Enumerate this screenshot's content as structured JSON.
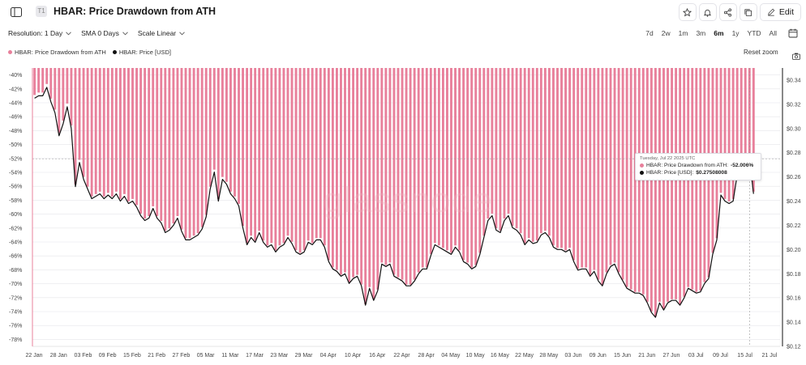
{
  "header": {
    "title": "HBAR: Price Drawdown from ATH",
    "tier_badge": "T1",
    "edit_label": "Edit"
  },
  "controls": {
    "resolution": "Resolution: 1 Day",
    "sma": "SMA 0 Days",
    "scale": "Scale Linear"
  },
  "ranges": [
    {
      "label": "7d",
      "active": false
    },
    {
      "label": "2w",
      "active": false
    },
    {
      "label": "1m",
      "active": false
    },
    {
      "label": "3m",
      "active": false
    },
    {
      "label": "6m",
      "active": true
    },
    {
      "label": "1y",
      "active": false
    },
    {
      "label": "YTD",
      "active": false
    },
    {
      "label": "All",
      "active": false
    }
  ],
  "reset_zoom": "Reset zoom",
  "watermark": "glassnode",
  "colors": {
    "drawdown": "#e8809b",
    "price": "#111111",
    "grid": "#e6e6ea"
  },
  "tooltip": {
    "date": "Tuesday, Jul 22 2025 UTC",
    "drawdown_label": "HBAR: Price Drawdown from ATH:",
    "drawdown_value": "-52.006%",
    "price_label": "HBAR: Price [USD]:",
    "price_value": "$0.27508008"
  },
  "chart_data": {
    "type": "bar+line",
    "series": [
      {
        "name": "HBAR: Price Drawdown from ATH",
        "type": "bar",
        "axis": "left"
      },
      {
        "name": "HBAR: Price [USD]",
        "type": "line",
        "axis": "right"
      }
    ],
    "x_start": "2025-01-22",
    "x_end": "2025-07-24",
    "x_ticks": [
      "22 Jan",
      "28 Jan",
      "03 Feb",
      "09 Feb",
      "15 Feb",
      "21 Feb",
      "27 Feb",
      "05 Mar",
      "11 Mar",
      "17 Mar",
      "23 Mar",
      "29 Mar",
      "04 Apr",
      "10 Apr",
      "16 Apr",
      "22 Apr",
      "28 Apr",
      "04 May",
      "10 May",
      "16 May",
      "22 May",
      "28 May",
      "03 Jun",
      "09 Jun",
      "15 Jun",
      "21 Jun",
      "27 Jun",
      "03 Jul",
      "09 Jul",
      "15 Jul",
      "21 Jul"
    ],
    "y_left": {
      "min": -79,
      "max": -39,
      "ticks": [
        -40,
        -42,
        -44,
        -46,
        -48,
        -50,
        -52,
        -54,
        -56,
        -58,
        -60,
        -62,
        -64,
        -66,
        -68,
        -70,
        -72,
        -74,
        -76,
        -78
      ],
      "unit": "%"
    },
    "y_right": {
      "min": 0.12,
      "max": 0.35,
      "ticks": [
        0.12,
        0.14,
        0.16,
        0.18,
        0.2,
        0.22,
        0.24,
        0.26,
        0.28,
        0.3,
        0.32,
        0.34
      ],
      "unit": "$"
    },
    "price_usd": [
      0.325,
      0.327,
      0.327,
      0.334,
      0.322,
      0.313,
      0.294,
      0.304,
      0.318,
      0.3,
      0.252,
      0.272,
      0.258,
      0.25,
      0.242,
      0.244,
      0.246,
      0.242,
      0.245,
      0.242,
      0.246,
      0.24,
      0.244,
      0.238,
      0.24,
      0.235,
      0.228,
      0.224,
      0.226,
      0.234,
      0.226,
      0.222,
      0.214,
      0.216,
      0.22,
      0.226,
      0.215,
      0.208,
      0.208,
      0.21,
      0.212,
      0.217,
      0.227,
      0.25,
      0.264,
      0.24,
      0.258,
      0.254,
      0.246,
      0.242,
      0.236,
      0.218,
      0.204,
      0.21,
      0.206,
      0.214,
      0.206,
      0.202,
      0.204,
      0.198,
      0.202,
      0.204,
      0.21,
      0.205,
      0.198,
      0.196,
      0.198,
      0.206,
      0.204,
      0.208,
      0.208,
      0.202,
      0.19,
      0.184,
      0.182,
      0.178,
      0.18,
      0.172,
      0.176,
      0.178,
      0.17,
      0.154,
      0.168,
      0.158,
      0.166,
      0.188,
      0.186,
      0.188,
      0.178,
      0.176,
      0.174,
      0.17,
      0.17,
      0.174,
      0.18,
      0.184,
      0.184,
      0.195,
      0.204,
      0.202,
      0.2,
      0.198,
      0.196,
      0.202,
      0.198,
      0.19,
      0.188,
      0.184,
      0.186,
      0.196,
      0.21,
      0.224,
      0.228,
      0.216,
      0.214,
      0.224,
      0.228,
      0.218,
      0.216,
      0.212,
      0.204,
      0.208,
      0.205,
      0.206,
      0.212,
      0.214,
      0.21,
      0.202,
      0.2,
      0.2,
      0.198,
      0.2,
      0.19,
      0.183,
      0.184,
      0.184,
      0.178,
      0.182,
      0.174,
      0.17,
      0.18,
      0.186,
      0.188,
      0.18,
      0.174,
      0.168,
      0.166,
      0.164,
      0.164,
      0.162,
      0.156,
      0.148,
      0.144,
      0.156,
      0.15,
      0.156,
      0.158,
      0.158,
      0.154,
      0.16,
      0.168,
      0.166,
      0.164,
      0.165,
      0.172,
      0.176,
      0.196,
      0.208,
      0.245,
      0.24,
      0.238,
      0.24,
      0.262,
      0.268,
      0.27,
      0.275,
      0.246
    ]
  }
}
